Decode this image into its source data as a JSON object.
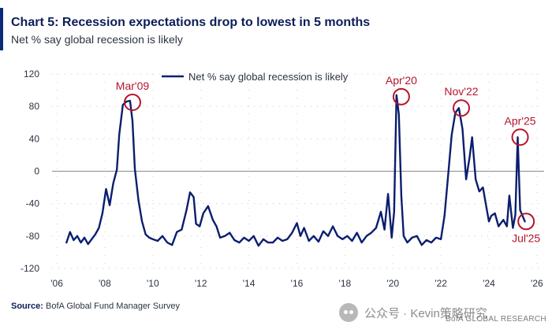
{
  "header": {
    "title": "Chart 5: Recession expectations drop to lowest in 5 months",
    "subtitle": "Net % say global recession is likely"
  },
  "footer": {
    "source_label": "Source:",
    "source_text": "BofA Global Fund Manager Survey",
    "watermark": "公众号 · Kevin策略研究",
    "brand": "BofA GLOBAL RESEARCH"
  },
  "colors": {
    "series": "#0b1e6e",
    "annotation": "#b5152b",
    "zero_line": "#8a8a8a",
    "text": "#2b3340"
  },
  "chart_data": {
    "type": "line",
    "title": "Chart 5: Recession expectations drop to lowest in 5 months",
    "subtitle": "Net % say global recession is likely",
    "xlim": [
      2005.8,
      2026.3
    ],
    "ylim": [
      -120,
      120
    ],
    "xticks": [
      2006,
      2008,
      2010,
      2012,
      2014,
      2016,
      2018,
      2020,
      2022,
      2024,
      2026
    ],
    "xtick_labels": [
      "'06",
      "'08",
      "'10",
      "'12",
      "'14",
      "'16",
      "'18",
      "'20",
      "'22",
      "'24",
      "'26"
    ],
    "yticks": [
      -120,
      -80,
      -40,
      0,
      40,
      80,
      120
    ],
    "ytick_labels": [
      "-120",
      "-80",
      "-40",
      "0",
      "40",
      "80",
      "120"
    ],
    "grid": "dotted",
    "legend": {
      "position": "top-center",
      "entries": [
        "Net % say global recession is likely"
      ]
    },
    "series": [
      {
        "name": "Net % say global recession is likely",
        "x": [
          2006.4,
          2006.55,
          2006.7,
          2006.85,
          2007.0,
          2007.15,
          2007.3,
          2007.45,
          2007.6,
          2007.75,
          2007.9,
          2008.05,
          2008.2,
          2008.35,
          2008.5,
          2008.6,
          2008.75,
          2008.9,
          2009.05,
          2009.15,
          2009.25,
          2009.4,
          2009.55,
          2009.7,
          2009.85,
          2010.0,
          2010.2,
          2010.4,
          2010.6,
          2010.8,
          2011.0,
          2011.2,
          2011.4,
          2011.55,
          2011.7,
          2011.8,
          2011.95,
          2012.1,
          2012.3,
          2012.5,
          2012.65,
          2012.8,
          2013.0,
          2013.2,
          2013.4,
          2013.6,
          2013.8,
          2014.0,
          2014.2,
          2014.4,
          2014.6,
          2014.8,
          2015.0,
          2015.2,
          2015.4,
          2015.6,
          2015.8,
          2016.0,
          2016.15,
          2016.3,
          2016.5,
          2016.7,
          2016.9,
          2017.1,
          2017.3,
          2017.5,
          2017.7,
          2017.9,
          2018.1,
          2018.3,
          2018.5,
          2018.7,
          2018.9,
          2019.1,
          2019.3,
          2019.5,
          2019.65,
          2019.8,
          2019.95,
          2020.05,
          2020.15,
          2020.25,
          2020.35,
          2020.45,
          2020.6,
          2020.8,
          2021.0,
          2021.2,
          2021.4,
          2021.6,
          2021.8,
          2022.0,
          2022.15,
          2022.3,
          2022.45,
          2022.6,
          2022.75,
          2022.9,
          2023.05,
          2023.2,
          2023.3,
          2023.45,
          2023.6,
          2023.75,
          2023.9,
          2024.0,
          2024.1,
          2024.25,
          2024.4,
          2024.6,
          2024.75,
          2024.85,
          2025.0,
          2025.1,
          2025.2,
          2025.3,
          2025.4,
          2025.5
        ],
        "y": [
          -88,
          -75,
          -85,
          -80,
          -88,
          -82,
          -90,
          -84,
          -78,
          -70,
          -52,
          -22,
          -42,
          -15,
          2,
          45,
          82,
          86,
          87,
          62,
          3,
          -36,
          -62,
          -78,
          -82,
          -84,
          -86,
          -80,
          -88,
          -91,
          -75,
          -72,
          -48,
          -26,
          -32,
          -65,
          -68,
          -52,
          -43,
          -60,
          -68,
          -82,
          -80,
          -76,
          -85,
          -88,
          -82,
          -86,
          -80,
          -92,
          -84,
          -88,
          -88,
          -82,
          -86,
          -84,
          -76,
          -64,
          -80,
          -70,
          -86,
          -80,
          -87,
          -74,
          -80,
          -68,
          -80,
          -84,
          -80,
          -86,
          -76,
          -88,
          -80,
          -76,
          -70,
          -50,
          -72,
          -28,
          -82,
          -50,
          94,
          70,
          -30,
          -80,
          -88,
          -82,
          -80,
          -91,
          -85,
          -88,
          -82,
          -84,
          -55,
          -6,
          45,
          72,
          78,
          52,
          -10,
          18,
          42,
          -10,
          -25,
          -20,
          -45,
          -62,
          -55,
          -52,
          -68,
          -60,
          -68,
          -30,
          -70,
          -54,
          42,
          -48,
          -55,
          -62
        ]
      }
    ],
    "annotations": [
      {
        "label": "Mar'09",
        "x": 2009.15,
        "y": 85
      },
      {
        "label": "Apr'20",
        "x": 2020.35,
        "y": 92
      },
      {
        "label": "Nov'22",
        "x": 2022.85,
        "y": 78
      },
      {
        "label": "Apr'25",
        "x": 2025.3,
        "y": 42
      },
      {
        "label": "Jul'25",
        "x": 2025.55,
        "y": -62
      }
    ]
  }
}
